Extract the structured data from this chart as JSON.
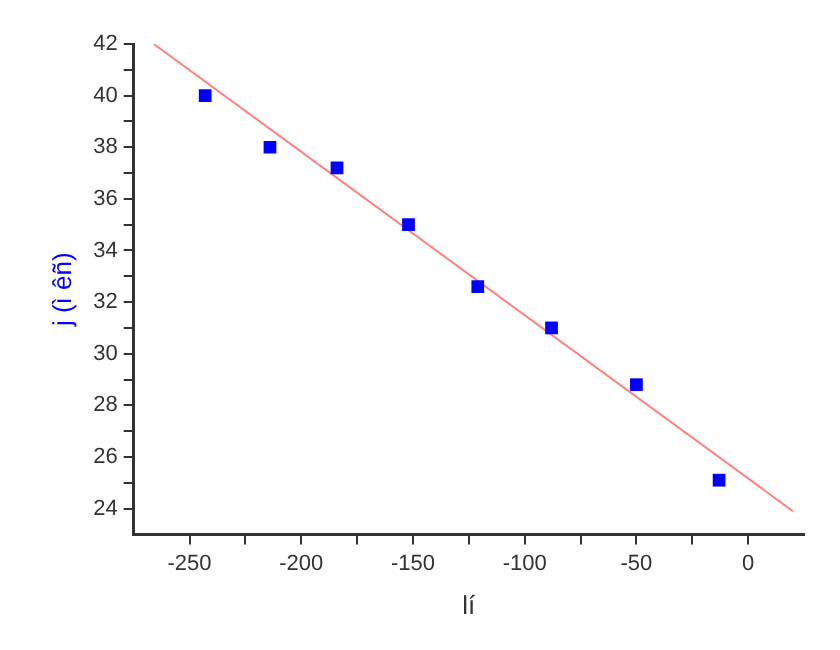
{
  "chart_data": {
    "type": "scatter",
    "xlabel": "lí",
    "ylabel": "j (ì êñ)",
    "xlim": [
      -275,
      25
    ],
    "ylim": [
      23,
      42
    ],
    "xticks": [
      -250,
      {
        "value": -225,
        "label": null
      },
      -200,
      {
        "value": -175,
        "label": null
      },
      -150,
      {
        "value": -125,
        "label": null
      },
      -100,
      {
        "value": -75,
        "label": null
      },
      -50,
      {
        "value": -25,
        "label": null
      },
      0
    ],
    "yticks": [
      24,
      {
        "value": 25,
        "label": null
      },
      26,
      {
        "value": 27,
        "label": null
      },
      28,
      {
        "value": 29,
        "label": null
      },
      30,
      {
        "value": 31,
        "label": null
      },
      32,
      {
        "value": 33,
        "label": null
      },
      34,
      {
        "value": 35,
        "label": null
      },
      36,
      {
        "value": 37,
        "label": null
      },
      38,
      {
        "value": 39,
        "label": null
      },
      40,
      {
        "value": 41,
        "label": null
      },
      42
    ],
    "grid": false,
    "legend": false,
    "marker": "square",
    "series": [
      {
        "color": "#0000ff",
        "x": [
          -243,
          -214,
          -184,
          -152,
          -121,
          -88,
          -50,
          -13
        ],
        "values": [
          40,
          38,
          37.2,
          35,
          32.6,
          31,
          28.8,
          25.1
        ]
      },
      {
        "type": "line",
        "color": "#ff8080",
        "marker": "none",
        "x": [
          -266,
          20
        ],
        "values": [
          42,
          23.9
        ]
      }
    ]
  }
}
